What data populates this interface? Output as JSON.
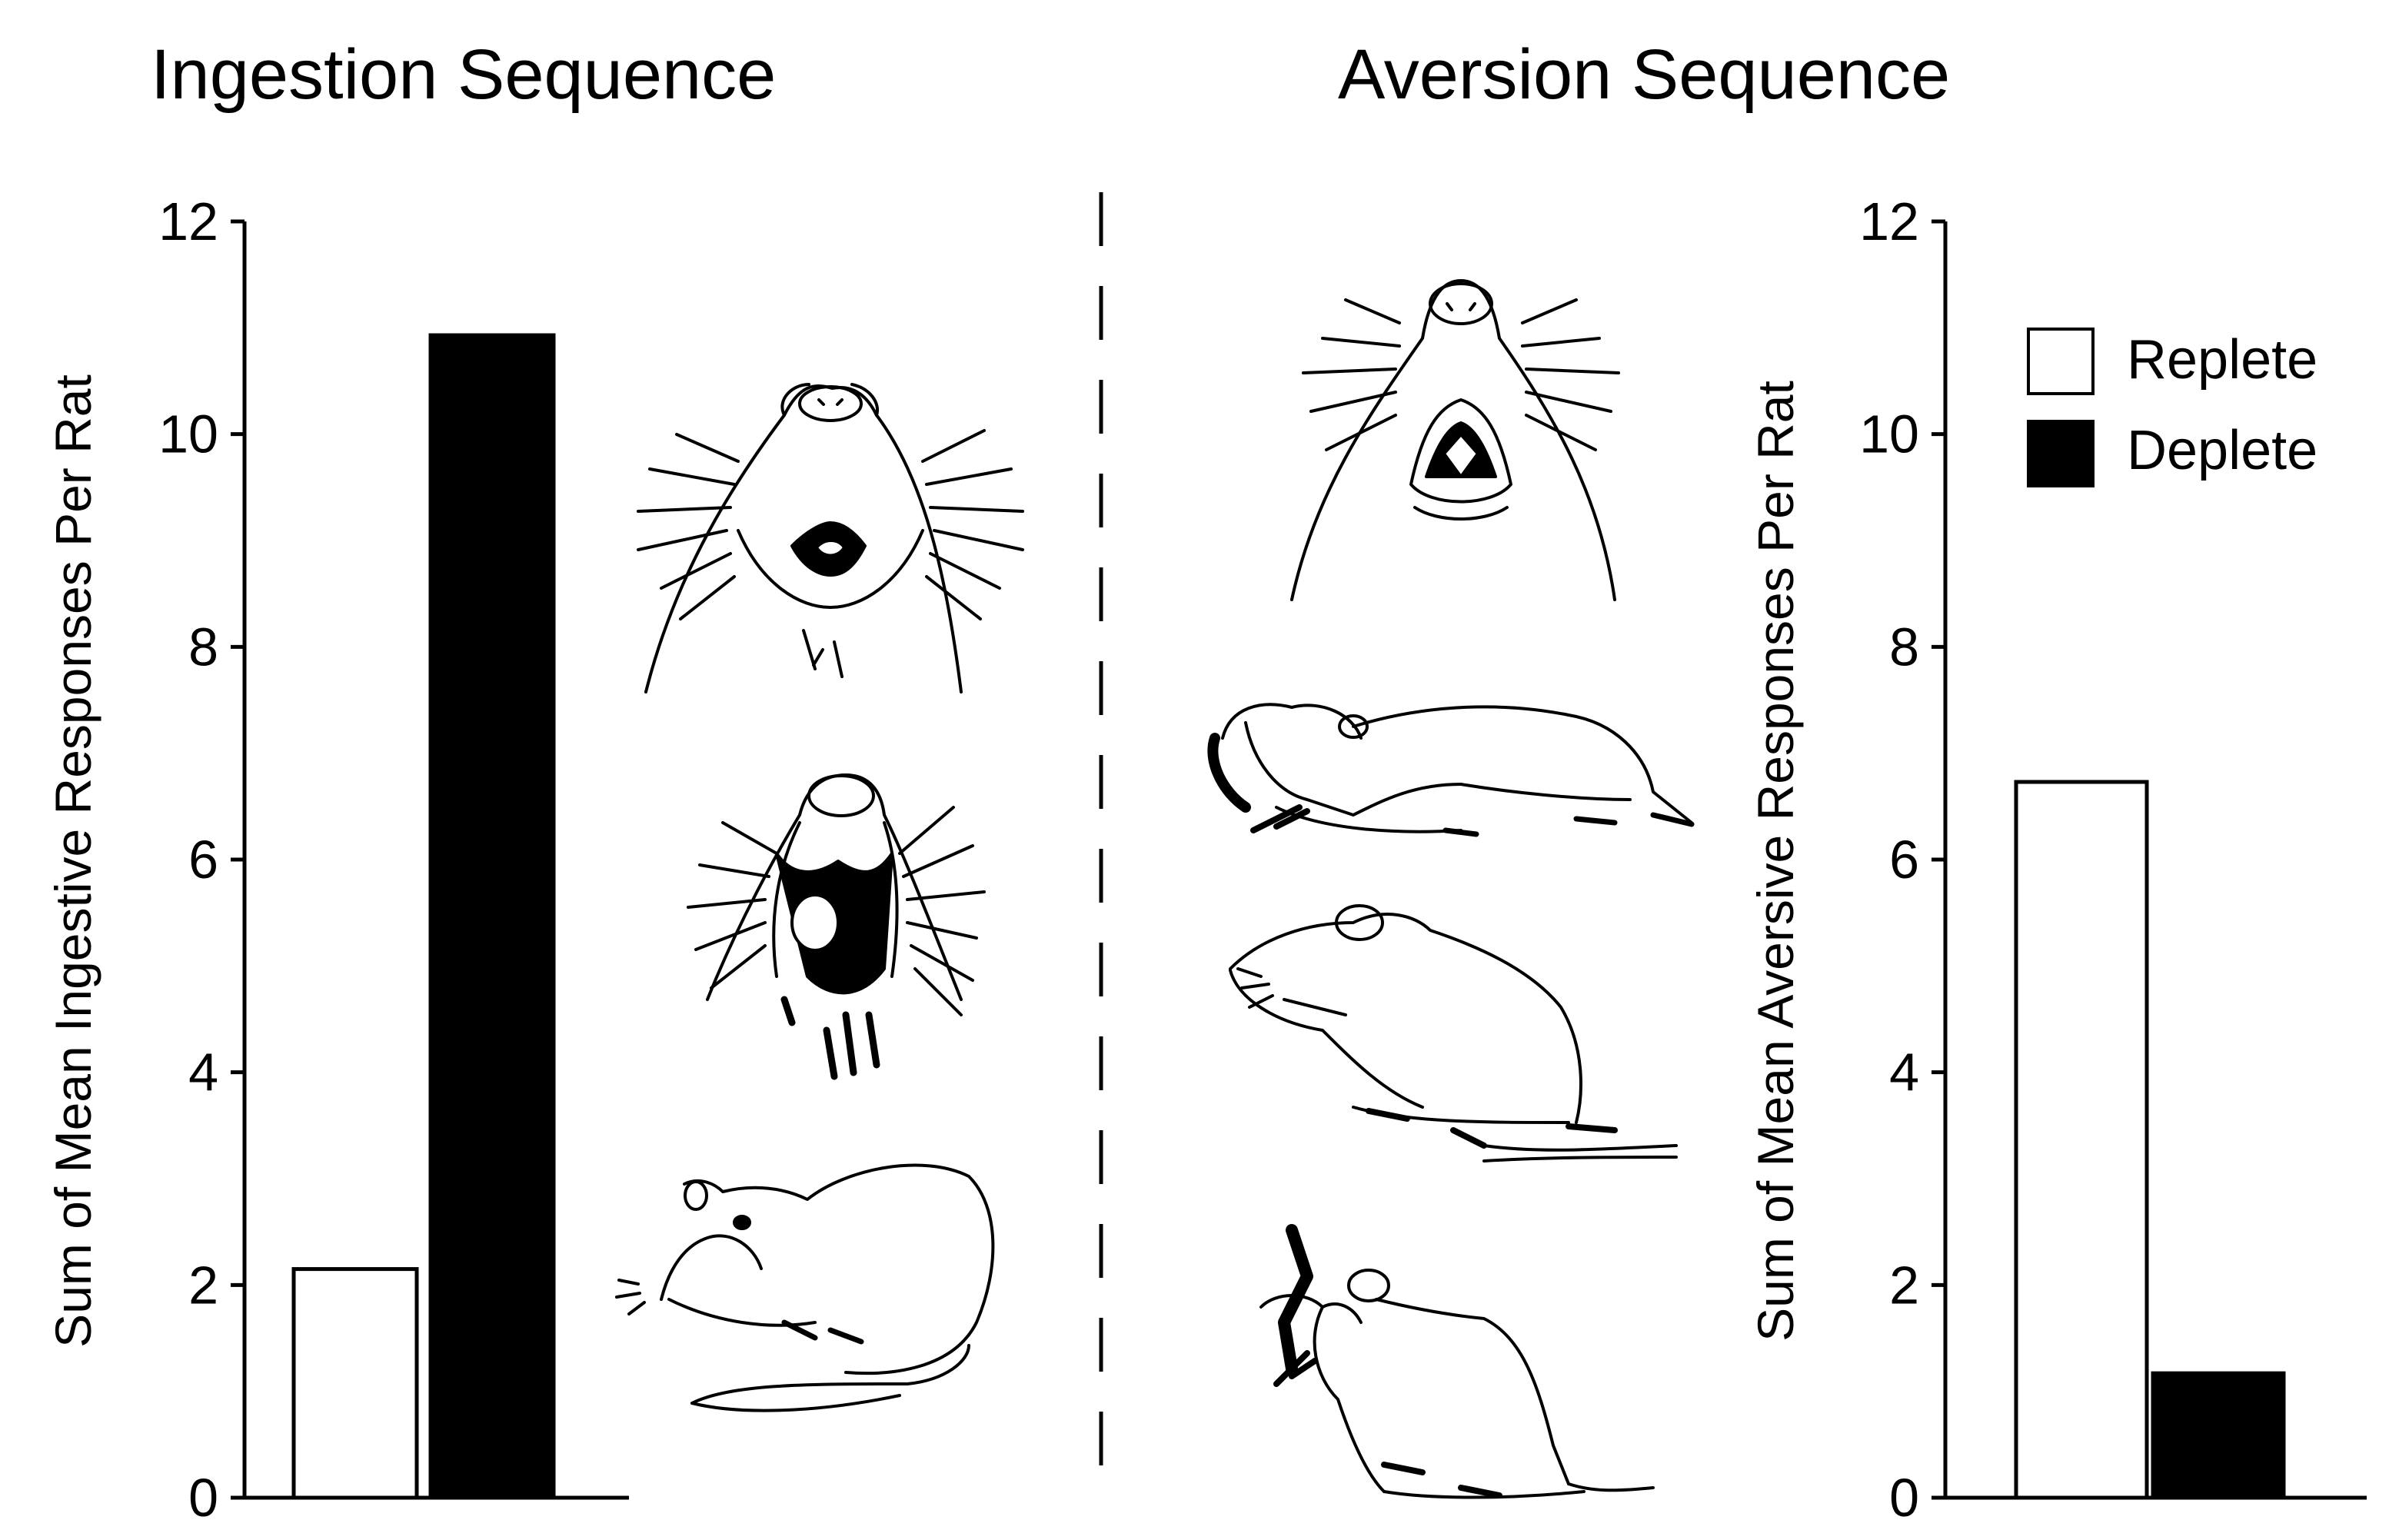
{
  "chart_data": [
    {
      "type": "bar",
      "title": "Ingestion Sequence",
      "ylabel": "Sum of Mean Ingestive Responses Per Rat",
      "ylim": [
        0,
        12
      ],
      "yticks": [
        "0",
        "2",
        "4",
        "6",
        "8",
        "10",
        "12"
      ],
      "categories": [
        "Replete",
        "Deplete"
      ],
      "values": [
        2.15,
        10.93
      ],
      "colors": [
        "#ffffff",
        "#000000"
      ]
    },
    {
      "type": "bar",
      "title": "Aversion Sequence",
      "ylabel": "Sum of Mean Aversive Responses Per Rat",
      "ylim": [
        0,
        12
      ],
      "yticks": [
        "0",
        "2",
        "4",
        "6",
        "8",
        "10",
        "12"
      ],
      "categories": [
        "Replete",
        "Deplete"
      ],
      "values": [
        6.73,
        1.17
      ],
      "colors": [
        "#ffffff",
        "#000000"
      ]
    }
  ],
  "legend": {
    "placement": "top-right",
    "items": [
      {
        "label": "Replete",
        "color": "#ffffff"
      },
      {
        "label": "Deplete",
        "color": "#000000"
      }
    ]
  },
  "illustrations": {
    "ingestion": [
      "rat-tongue-protrusion-icon",
      "rat-lateral-tongue-protrusion-icon",
      "rat-paw-licking-icon"
    ],
    "aversion": [
      "rat-gape-icon",
      "rat-chin-rub-icon",
      "rat-head-shake-icon",
      "rat-face-wash-icon"
    ]
  }
}
